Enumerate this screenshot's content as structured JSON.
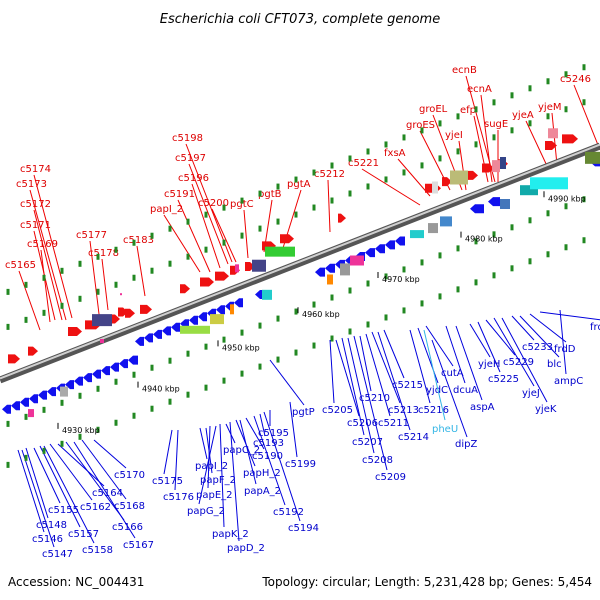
{
  "title": "Escherichia coli CFT073, complete genome",
  "footer": {
    "accession": "Accession: NC_004431",
    "summary": "Topology: circular; Length: 5,231,428 bp; Genes: 5,454"
  },
  "colors": {
    "forward_label": "#dd0000",
    "reverse_label": "#0000cc",
    "rna_label": "#33b5e5",
    "backbone": "#777777",
    "tick": "#228822"
  },
  "scale": [
    "4930 kbp",
    "4940 kbp",
    "4950 kbp",
    "4960 kbp",
    "4970 kbp",
    "4980 kbp",
    "4990 kbp"
  ],
  "forward_genes": [
    "c5165",
    "c5169",
    "c5171",
    "c5172",
    "c5173",
    "c5174",
    "c5177",
    "c5178",
    "c5183",
    "papI_2",
    "c5191",
    "c5196",
    "c5197",
    "c5198",
    "c5200",
    "pgtC",
    "pgtB",
    "pgtA",
    "c5212",
    "c5221",
    "fxsA",
    "groES",
    "groEL",
    "yjeI",
    "efp",
    "ecnA",
    "ecnB",
    "sugE",
    "yjeA",
    "yjeM",
    "c5246"
  ],
  "reverse_genes": [
    "c5146",
    "c5147",
    "c5148",
    "c5155",
    "c5157",
    "c5158",
    "c5162",
    "c5164",
    "c5166",
    "c5167",
    "c5168",
    "c5170",
    "c5175",
    "c5176",
    "papI_2",
    "papF_2",
    "papE_2",
    "papG_2",
    "papK_2",
    "papC_2",
    "papD_2",
    "papH_2",
    "papA_2",
    "c5190",
    "c5192",
    "c5193",
    "c5194",
    "c5195",
    "c5199",
    "pgtP",
    "c5205",
    "c5206",
    "c5207",
    "c5208",
    "c5209",
    "c5210",
    "c5211",
    "c5213",
    "c5214",
    "c5215",
    "c5216",
    "yjdC",
    "cutA",
    "dcuA",
    "aspA",
    "dipZ",
    "yjeH",
    "c5225",
    "c5229",
    "yjeJ",
    "yjeK",
    "c5233",
    "blc",
    "frdD",
    "frdC",
    "ampC"
  ],
  "rna_genes": [
    "pheU"
  ]
}
